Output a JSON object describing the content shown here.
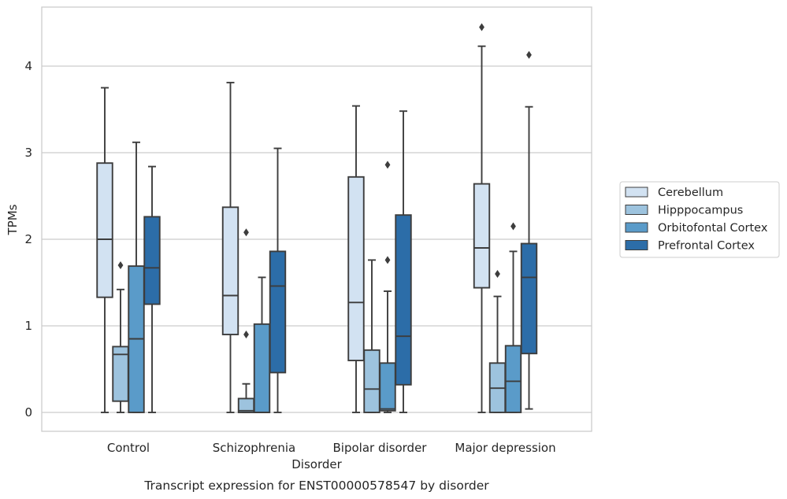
{
  "chart_data": {
    "type": "boxplot",
    "caption": "Transcript expression for ENST00000578547 by disorder",
    "xlabel": "Disorder",
    "ylabel": "TPMs",
    "ylim": [
      -0.22,
      4.7
    ],
    "yticks": [
      0,
      1,
      2,
      3,
      4
    ],
    "grid": true,
    "legend_position": "right",
    "categories": [
      "Control",
      "Schizophrenia",
      "Bipolar disorder",
      "Major depression"
    ],
    "series": [
      {
        "name": "Cerebellum",
        "color": "#d2e2f2",
        "boxes": [
          {
            "whislo": 0,
            "q1": 1.33,
            "med": 2.0,
            "q3": 2.88,
            "whishi": 3.75,
            "fliers": []
          },
          {
            "whislo": 0,
            "q1": 0.9,
            "med": 1.35,
            "q3": 2.37,
            "whishi": 3.81,
            "fliers": []
          },
          {
            "whislo": 0,
            "q1": 0.6,
            "med": 1.27,
            "q3": 2.72,
            "whishi": 3.54,
            "fliers": []
          },
          {
            "whislo": 0,
            "q1": 1.44,
            "med": 1.9,
            "q3": 2.64,
            "whishi": 4.23,
            "fliers": [
              4.45
            ]
          }
        ]
      },
      {
        "name": "Hipppocampus",
        "color": "#9dc3de",
        "boxes": [
          {
            "whislo": 0,
            "q1": 0.13,
            "med": 0.67,
            "q3": 0.76,
            "whishi": 1.42,
            "fliers": [
              1.7
            ]
          },
          {
            "whislo": 0,
            "q1": 0,
            "med": 0.02,
            "q3": 0.16,
            "whishi": 0.33,
            "fliers": [
              0.9,
              2.08
            ]
          },
          {
            "whislo": 0,
            "q1": 0,
            "med": 0.27,
            "q3": 0.72,
            "whishi": 1.76,
            "fliers": []
          },
          {
            "whislo": 0,
            "q1": 0,
            "med": 0.28,
            "q3": 0.57,
            "whishi": 1.34,
            "fliers": [
              1.6
            ]
          }
        ]
      },
      {
        "name": "Orbitofontal Cortex",
        "color": "#5a9bc9",
        "boxes": [
          {
            "whislo": 0,
            "q1": 0,
            "med": 0.85,
            "q3": 1.69,
            "whishi": 3.12,
            "fliers": []
          },
          {
            "whislo": 0,
            "q1": 0,
            "med": 0,
            "q3": 1.02,
            "whishi": 1.56,
            "fliers": []
          },
          {
            "whislo": 0,
            "q1": 0.02,
            "med": 0.04,
            "q3": 0.57,
            "whishi": 1.4,
            "fliers": [
              1.76,
              2.86
            ]
          },
          {
            "whislo": 0,
            "q1": 0,
            "med": 0.36,
            "q3": 0.77,
            "whishi": 1.86,
            "fliers": [
              2.15
            ]
          }
        ]
      },
      {
        "name": "Prefrontal Cortex",
        "color": "#2c6da8",
        "boxes": [
          {
            "whislo": 0,
            "q1": 1.25,
            "med": 1.67,
            "q3": 2.26,
            "whishi": 2.84,
            "fliers": []
          },
          {
            "whislo": 0,
            "q1": 0.46,
            "med": 1.46,
            "q3": 1.86,
            "whishi": 3.05,
            "fliers": []
          },
          {
            "whislo": 0,
            "q1": 0.32,
            "med": 0.88,
            "q3": 2.28,
            "whishi": 3.48,
            "fliers": []
          },
          {
            "whislo": 0.04,
            "q1": 0.68,
            "med": 1.56,
            "q3": 1.95,
            "whishi": 3.53,
            "fliers": [
              4.13
            ]
          }
        ]
      }
    ]
  }
}
